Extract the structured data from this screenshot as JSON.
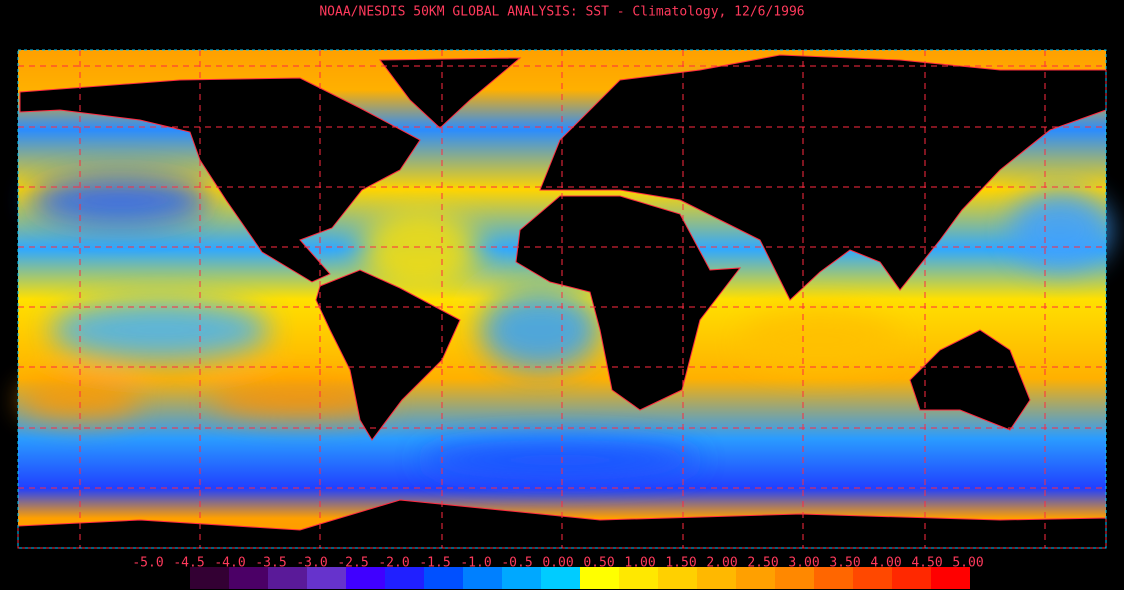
{
  "title": "NOAA/NESDIS 50KM GLOBAL ANALYSIS: SST - Climatology, 12/6/1996",
  "colorbar": {
    "ticks": [
      {
        "value": -5.0,
        "label": "-5.0"
      },
      {
        "value": -4.5,
        "label": "-4.5"
      },
      {
        "value": -4.0,
        "label": "-4.0"
      },
      {
        "value": -3.5,
        "label": "-3.5"
      },
      {
        "value": -3.0,
        "label": "-3.0"
      },
      {
        "value": -2.5,
        "label": "-2.5"
      },
      {
        "value": -2.0,
        "label": "-2.0"
      },
      {
        "value": -1.5,
        "label": "-1.5"
      },
      {
        "value": -1.0,
        "label": "-1.0"
      },
      {
        "value": -0.5,
        "label": "-0.5"
      },
      {
        "value": 0,
        "label": "0.00"
      },
      {
        "value": 0.5,
        "label": "0.50"
      },
      {
        "value": 1.0,
        "label": "1.00"
      },
      {
        "value": 1.5,
        "label": "1.50"
      },
      {
        "value": 2.0,
        "label": "2.00"
      },
      {
        "value": 2.5,
        "label": "2.50"
      },
      {
        "value": 3.0,
        "label": "3.00"
      },
      {
        "value": 3.5,
        "label": "3.50"
      },
      {
        "value": 4.0,
        "label": "4.00"
      },
      {
        "value": 4.5,
        "label": "4.50"
      },
      {
        "value": 5.0,
        "label": "5.00"
      }
    ],
    "colors": [
      "#330033",
      "#4b0066",
      "#5a1a99",
      "#6633cc",
      "#4000ff",
      "#2020ff",
      "#0050ff",
      "#0080ff",
      "#00a8ff",
      "#00ccff",
      "#ffff00",
      "#ffe800",
      "#ffd000",
      "#ffb800",
      "#ffa000",
      "#ff8800",
      "#ff6600",
      "#ff4800",
      "#ff2800",
      "#ff0000"
    ]
  }
}
